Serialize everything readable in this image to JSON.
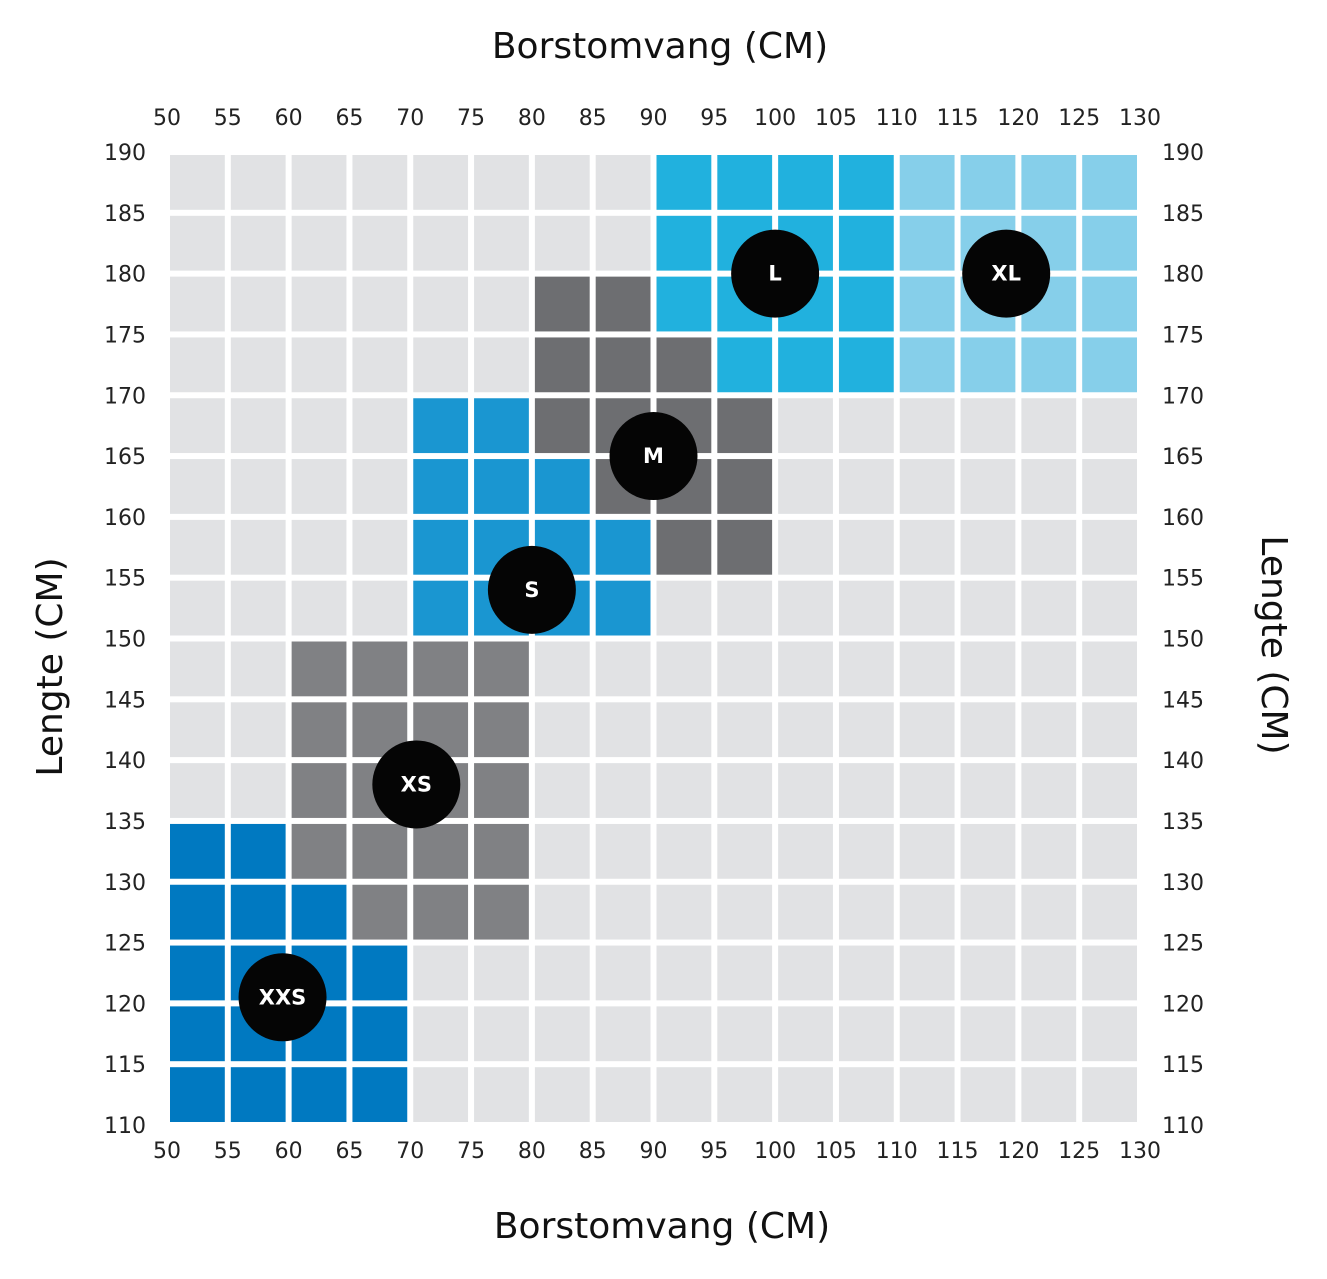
{
  "chart_data": {
    "type": "heatmap",
    "x_axis_title": "Borstomvang (CM)",
    "y_axis_title": "Lengte (CM)",
    "x_ticks": [
      50,
      55,
      60,
      65,
      70,
      75,
      80,
      85,
      90,
      95,
      100,
      105,
      110,
      115,
      120,
      125,
      130
    ],
    "y_ticks": [
      110,
      115,
      120,
      125,
      130,
      135,
      140,
      145,
      150,
      155,
      160,
      165,
      170,
      175,
      180,
      185,
      190
    ],
    "xlim": [
      50,
      130
    ],
    "ylim": [
      110,
      190
    ],
    "cell_size": 5,
    "default_color": "#e1e2e4",
    "sizes": [
      {
        "label": "XXS",
        "color": "#0079c1",
        "label_at": [
          59.5,
          120.5
        ],
        "cells": [
          [
            50,
            130
          ],
          [
            55,
            130
          ],
          [
            50,
            125
          ],
          [
            55,
            125
          ],
          [
            60,
            125
          ],
          [
            50,
            120
          ],
          [
            55,
            120
          ],
          [
            60,
            120
          ],
          [
            65,
            120
          ],
          [
            50,
            115
          ],
          [
            55,
            115
          ],
          [
            60,
            115
          ],
          [
            65,
            115
          ],
          [
            50,
            110
          ],
          [
            55,
            110
          ],
          [
            60,
            110
          ],
          [
            65,
            110
          ]
        ]
      },
      {
        "label": "XS",
        "color": "#808184",
        "label_at": [
          70.5,
          138
        ],
        "cells": [
          [
            60,
            145
          ],
          [
            65,
            145
          ],
          [
            70,
            145
          ],
          [
            75,
            145
          ],
          [
            60,
            140
          ],
          [
            65,
            140
          ],
          [
            70,
            140
          ],
          [
            75,
            140
          ],
          [
            60,
            135
          ],
          [
            65,
            135
          ],
          [
            70,
            135
          ],
          [
            75,
            135
          ],
          [
            60,
            130
          ],
          [
            65,
            130
          ],
          [
            70,
            130
          ],
          [
            75,
            130
          ],
          [
            65,
            125
          ],
          [
            70,
            125
          ],
          [
            75,
            125
          ]
        ]
      },
      {
        "label": "S",
        "color": "#1a96d1",
        "label_at": [
          80,
          154
        ],
        "cells": [
          [
            70,
            165
          ],
          [
            75,
            165
          ],
          [
            70,
            160
          ],
          [
            75,
            160
          ],
          [
            80,
            160
          ],
          [
            70,
            155
          ],
          [
            75,
            155
          ],
          [
            80,
            155
          ],
          [
            85,
            155
          ],
          [
            70,
            150
          ],
          [
            75,
            150
          ],
          [
            80,
            150
          ],
          [
            85,
            150
          ]
        ]
      },
      {
        "label": "M",
        "color": "#6d6e71",
        "label_at": [
          90,
          165
        ],
        "cells": [
          [
            80,
            175
          ],
          [
            85,
            175
          ],
          [
            80,
            170
          ],
          [
            85,
            170
          ],
          [
            90,
            170
          ],
          [
            80,
            165
          ],
          [
            85,
            165
          ],
          [
            90,
            165
          ],
          [
            95,
            165
          ],
          [
            85,
            160
          ],
          [
            90,
            160
          ],
          [
            95,
            160
          ],
          [
            90,
            155
          ],
          [
            95,
            155
          ]
        ]
      },
      {
        "label": "L",
        "color": "#21b1de",
        "label_at": [
          100,
          180
        ],
        "cells": [
          [
            90,
            185
          ],
          [
            95,
            185
          ],
          [
            100,
            185
          ],
          [
            105,
            185
          ],
          [
            90,
            180
          ],
          [
            95,
            180
          ],
          [
            100,
            180
          ],
          [
            105,
            180
          ],
          [
            90,
            175
          ],
          [
            95,
            175
          ],
          [
            100,
            175
          ],
          [
            105,
            175
          ],
          [
            95,
            170
          ],
          [
            100,
            170
          ],
          [
            105,
            170
          ]
        ]
      },
      {
        "label": "XL",
        "color": "#86cfea",
        "label_at": [
          119,
          180
        ],
        "cells": [
          [
            110,
            185
          ],
          [
            115,
            185
          ],
          [
            120,
            185
          ],
          [
            125,
            185
          ],
          [
            110,
            180
          ],
          [
            115,
            180
          ],
          [
            120,
            180
          ],
          [
            125,
            180
          ],
          [
            110,
            175
          ],
          [
            115,
            175
          ],
          [
            120,
            175
          ],
          [
            125,
            175
          ],
          [
            110,
            170
          ],
          [
            115,
            170
          ],
          [
            120,
            170
          ],
          [
            125,
            170
          ]
        ]
      }
    ]
  }
}
